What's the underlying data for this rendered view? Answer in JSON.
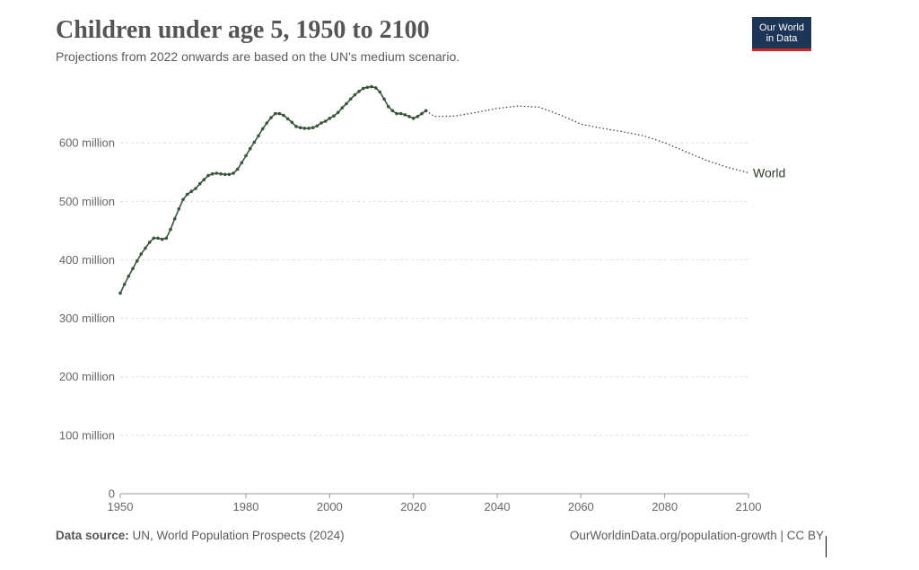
{
  "header": {
    "title": "Children under age 5, 1950 to 2100",
    "subtitle": "Projections from 2022 onwards are based on the UN's medium scenario.",
    "logo_line1": "Our World",
    "logo_line2": "in Data"
  },
  "footer": {
    "source_label": "Data source:",
    "source_text": "UN, World Population Prospects (2024)",
    "url": "OurWorldinData.org/population-growth | CC BY"
  },
  "colors": {
    "line": "#38563a",
    "grid": "#dddddd",
    "axis": "#999999"
  },
  "chart_data": {
    "type": "line",
    "title": "Children under age 5, 1950 to 2100",
    "subtitle": "Projections from 2022 onwards are based on the UN's medium scenario.",
    "xlabel": "",
    "ylabel": "",
    "xlim": [
      1950,
      2100
    ],
    "ylim": [
      0,
      700
    ],
    "x_ticks": [
      1950,
      1980,
      2000,
      2020,
      2040,
      2060,
      2080,
      2100
    ],
    "y_ticks": [
      0,
      100,
      200,
      300,
      400,
      500,
      600
    ],
    "y_tick_labels": [
      "0",
      "100 million",
      "200 million",
      "300 million",
      "400 million",
      "500 million",
      "600 million"
    ],
    "grid": true,
    "series": [
      {
        "name": "World",
        "historical": {
          "x": [
            1950,
            1951,
            1952,
            1953,
            1954,
            1955,
            1956,
            1957,
            1958,
            1959,
            1960,
            1961,
            1962,
            1963,
            1964,
            1965,
            1966,
            1967,
            1968,
            1969,
            1970,
            1971,
            1972,
            1973,
            1974,
            1975,
            1976,
            1977,
            1978,
            1979,
            1980,
            1981,
            1982,
            1983,
            1984,
            1985,
            1986,
            1987,
            1988,
            1989,
            1990,
            1991,
            1992,
            1993,
            1994,
            1995,
            1996,
            1997,
            1998,
            1999,
            2000,
            2001,
            2002,
            2003,
            2004,
            2005,
            2006,
            2007,
            2008,
            2009,
            2010,
            2011,
            2012,
            2013,
            2014,
            2015,
            2016,
            2017,
            2018,
            2019,
            2020,
            2021,
            2022,
            2023
          ],
          "y": [
            343,
            358,
            372,
            385,
            398,
            410,
            420,
            430,
            437,
            437,
            435,
            437,
            452,
            470,
            487,
            503,
            512,
            517,
            522,
            530,
            537,
            544,
            547,
            548,
            547,
            546,
            546,
            548,
            555,
            566,
            578,
            590,
            601,
            612,
            624,
            634,
            643,
            650,
            650,
            647,
            641,
            635,
            628,
            626,
            625,
            625,
            626,
            629,
            634,
            637,
            642,
            646,
            652,
            660,
            667,
            675,
            682,
            688,
            693,
            695,
            696,
            694,
            687,
            675,
            662,
            655,
            650,
            650,
            648,
            645,
            642,
            645,
            650,
            655
          ]
        },
        "projection": {
          "x": [
            2023,
            2025,
            2030,
            2035,
            2040,
            2045,
            2050,
            2055,
            2060,
            2065,
            2070,
            2075,
            2080,
            2085,
            2090,
            2095,
            2100
          ],
          "y": [
            655,
            645,
            646,
            652,
            659,
            663,
            661,
            648,
            632,
            625,
            619,
            612,
            600,
            585,
            570,
            558,
            549
          ]
        }
      }
    ]
  }
}
